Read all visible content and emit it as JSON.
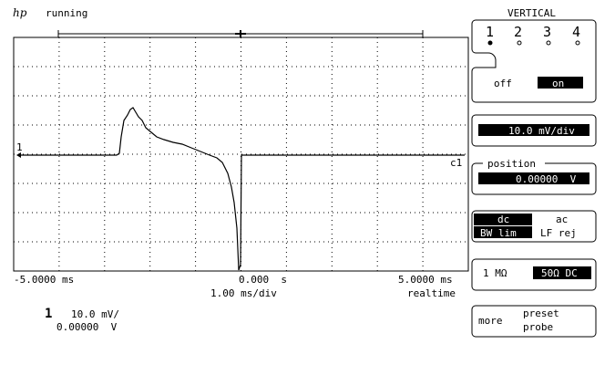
{
  "status": {
    "logo": "hp",
    "state": "running"
  },
  "menu": {
    "title": "VERTICAL",
    "channels": [
      "1",
      "2",
      "3",
      "4"
    ],
    "display": {
      "off": "off",
      "on": "on"
    },
    "scale": "10.0 mV/div",
    "position": {
      "label": "position",
      "value": "0.00000  V"
    },
    "coupling": {
      "dc": "dc",
      "ac": "ac",
      "bw": "BW lim",
      "lf": "LF rej"
    },
    "impedance": {
      "high": "1 MΩ",
      "low": "50Ω DC"
    },
    "probe": {
      "more": "more",
      "preset": "preset",
      "probe": "probe"
    }
  },
  "axis": {
    "left": "-5.0000 ms",
    "center": "0.000  s",
    "right": "5.0000 ms",
    "timebase": "1.00 ms/div",
    "mode": "realtime"
  },
  "trace": {
    "marker": "1",
    "label": "c1"
  },
  "channel_info": {
    "number": "1",
    "scale": "10.0 mV/",
    "offset": "0.00000  V"
  }
}
